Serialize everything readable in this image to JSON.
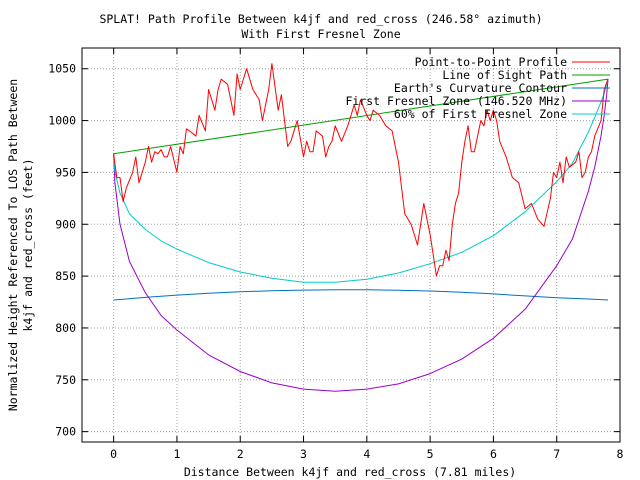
{
  "chart_data": {
    "type": "line",
    "title_line1": "SPLAT! Path Profile Between k4jf and red_cross (246.58° azimuth)",
    "title_line2": "With First Fresnel Zone",
    "xlabel": "Distance Between k4jf and red_cross (7.81 miles)",
    "ylabel_line1": "Normalized Height Referenced To LOS Path Between",
    "ylabel_line2": "k4jf and red_cross (feet)",
    "xlim": [
      -0.5,
      8
    ],
    "ylim": [
      690,
      1070
    ],
    "xticks": [
      0,
      1,
      2,
      3,
      4,
      5,
      6,
      7,
      8
    ],
    "yticks": [
      700,
      750,
      800,
      850,
      900,
      950,
      1000,
      1050
    ],
    "grid": true,
    "legend_position": "top-right",
    "series": [
      {
        "name": "Point-to-Point Profile",
        "color": "#ff0000",
        "x": [
          0,
          0.05,
          0.1,
          0.15,
          0.2,
          0.3,
          0.35,
          0.4,
          0.5,
          0.55,
          0.6,
          0.65,
          0.7,
          0.75,
          0.8,
          0.85,
          0.9,
          1.0,
          1.05,
          1.1,
          1.15,
          1.2,
          1.3,
          1.35,
          1.45,
          1.5,
          1.6,
          1.65,
          1.7,
          1.8,
          1.9,
          1.95,
          2.0,
          2.05,
          2.1,
          2.2,
          2.3,
          2.35,
          2.45,
          2.5,
          2.6,
          2.65,
          2.7,
          2.75,
          2.8,
          2.9,
          3.0,
          3.05,
          3.1,
          3.15,
          3.2,
          3.3,
          3.35,
          3.4,
          3.45,
          3.5,
          3.6,
          3.7,
          3.8,
          3.85,
          3.9,
          4.0,
          4.05,
          4.1,
          4.2,
          4.3,
          4.4,
          4.5,
          4.55,
          4.6,
          4.7,
          4.8,
          4.9,
          5.0,
          5.05,
          5.1,
          5.15,
          5.2,
          5.25,
          5.3,
          5.35,
          5.4,
          5.45,
          5.5,
          5.55,
          5.6,
          5.65,
          5.7,
          5.75,
          5.8,
          5.85,
          5.9,
          5.95,
          6.0,
          6.05,
          6.1,
          6.2,
          6.3,
          6.4,
          6.5,
          6.6,
          6.7,
          6.8,
          6.9,
          6.95,
          7.0,
          7.05,
          7.1,
          7.15,
          7.2,
          7.3,
          7.35,
          7.4,
          7.45,
          7.5,
          7.55,
          7.6,
          7.7,
          7.75,
          7.81
        ],
        "y": [
          968,
          945,
          945,
          922,
          935,
          950,
          965,
          940,
          960,
          975,
          960,
          970,
          968,
          972,
          965,
          965,
          975,
          950,
          975,
          968,
          992,
          990,
          985,
          1005,
          990,
          1030,
          1010,
          1030,
          1040,
          1035,
          1005,
          1045,
          1030,
          1040,
          1050,
          1030,
          1020,
          1000,
          1030,
          1055,
          1010,
          1025,
          1000,
          975,
          980,
          1000,
          965,
          980,
          970,
          970,
          990,
          985,
          965,
          975,
          980,
          995,
          980,
          995,
          1015,
          1005,
          1020,
          1005,
          1000,
          1010,
          1005,
          995,
          990,
          960,
          935,
          910,
          900,
          880,
          920,
          890,
          870,
          850,
          860,
          860,
          875,
          865,
          900,
          920,
          930,
          960,
          980,
          995,
          970,
          970,
          985,
          1000,
          995,
          1010,
          1000,
          1010,
          1000,
          980,
          965,
          945,
          940,
          915,
          920,
          905,
          898,
          925,
          950,
          945,
          960,
          940,
          965,
          955,
          960,
          970,
          945,
          950,
          965,
          970,
          985,
          1000,
          1030,
          1040
        ]
      },
      {
        "name": "Line of Sight Path",
        "color": "#00a000",
        "x": [
          0,
          7.81
        ],
        "y": [
          968,
          1040
        ]
      },
      {
        "name": "Earth's Curvature Contour",
        "color": "#0070c0",
        "x": [
          0,
          0.5,
          1,
          1.5,
          2,
          2.5,
          3,
          3.5,
          4,
          4.5,
          5,
          5.5,
          6,
          6.5,
          7,
          7.5,
          7.81
        ],
        "y": [
          827,
          829.5,
          831.7,
          833.5,
          834.9,
          835.9,
          836.5,
          836.8,
          836.8,
          836.4,
          835.6,
          834.4,
          832.8,
          830.9,
          829.2,
          827.9,
          827
        ]
      },
      {
        "name": "First Fresnel Zone (146.520 MHz)",
        "color": "#9900cc",
        "x": [
          0,
          0.02,
          0.1,
          0.25,
          0.5,
          0.75,
          1,
          1.5,
          2,
          2.5,
          3,
          3.5,
          4,
          4.5,
          5,
          5.5,
          6,
          6.5,
          7,
          7.25,
          7.5,
          7.6,
          7.7,
          7.75,
          7.79,
          7.81
        ],
        "y": [
          968,
          940,
          900,
          864,
          834,
          812,
          798,
          774,
          758,
          747,
          741,
          739,
          741,
          746,
          756,
          770,
          790,
          818,
          860,
          886,
          932,
          955,
          985,
          1005,
          1025,
          1040
        ]
      },
      {
        "name": "60% of First Fresnel Zone",
        "color": "#00cccc",
        "x": [
          0,
          0.02,
          0.1,
          0.25,
          0.5,
          0.75,
          1,
          1.5,
          2,
          2.5,
          3,
          3.5,
          4,
          4.5,
          5,
          5.5,
          6,
          6.5,
          7,
          7.25,
          7.5,
          7.6,
          7.7,
          7.75,
          7.79,
          7.81
        ],
        "y": [
          968,
          951,
          930,
          910,
          895,
          884,
          876,
          863,
          854,
          848,
          844,
          844,
          847,
          853,
          862,
          873,
          889,
          912,
          941,
          959,
          989,
          1003,
          1018,
          1026,
          1035,
          1040
        ]
      }
    ]
  }
}
